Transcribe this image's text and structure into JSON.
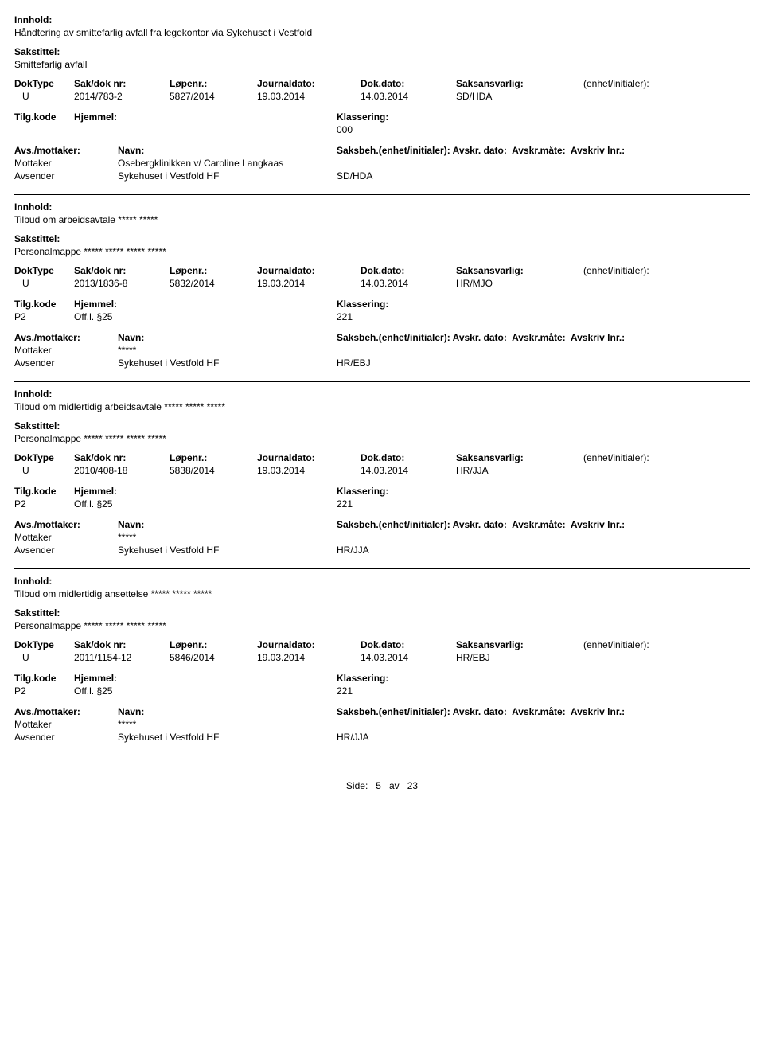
{
  "labels": {
    "innhold": "Innhold:",
    "sakstittel": "Sakstittel:",
    "dokType": "DokType",
    "sakDokNr": "Sak/dok nr:",
    "lopenr": "Løpenr.:",
    "journaldato": "Journaldato:",
    "dokDato": "Dok.dato:",
    "saksansvarlig": "Saksansvarlig:",
    "enhetInit": "(enhet/initialer):",
    "tilgKode": "Tilg.kode",
    "hjemmel": "Hjemmel:",
    "klassering": "Klassering:",
    "avsMottaker": "Avs./mottaker:",
    "navn": "Navn:",
    "saksbeh": "Saksbeh.(enhet/initialer):",
    "avskrDato": "Avskr. dato:",
    "avskrMate": "Avskr.måte:",
    "avskrivLnr": "Avskriv lnr.:",
    "mottaker": "Mottaker",
    "avsender": "Avsender"
  },
  "records": [
    {
      "innhold": "Håndtering av smittefarlig avfall fra legekontor via Sykehuset i Vestfold",
      "sakstittel": "Smittefarlig avfall",
      "dokType": "U",
      "sakDokNr": "2014/783-2",
      "lopenr": "5827/2014",
      "journaldato": "19.03.2014",
      "dokDato": "14.03.2014",
      "saksansvarlig": "SD/HDA",
      "tilgKode": "",
      "hjemmel": "",
      "klassering": "000",
      "mottakerNavn": "Osebergklinikken v/ Caroline Langkaas",
      "avsenderNavn": "Sykehuset i Vestfold HF",
      "saksbeh": "SD/HDA"
    },
    {
      "innhold": "Tilbud om arbeidsavtale ***** *****",
      "sakstittel": "Personalmappe ***** ***** ***** *****",
      "dokType": "U",
      "sakDokNr": "2013/1836-8",
      "lopenr": "5832/2014",
      "journaldato": "19.03.2014",
      "dokDato": "14.03.2014",
      "saksansvarlig": "HR/MJO",
      "tilgKode": "P2",
      "hjemmel": "Off.l. §25",
      "klassering": "221",
      "mottakerNavn": "*****",
      "avsenderNavn": "Sykehuset i Vestfold HF",
      "saksbeh": "HR/EBJ"
    },
    {
      "innhold": "Tilbud om midlertidig arbeidsavtale ***** ***** *****",
      "sakstittel": "Personalmappe ***** ***** ***** *****",
      "dokType": "U",
      "sakDokNr": "2010/408-18",
      "lopenr": "5838/2014",
      "journaldato": "19.03.2014",
      "dokDato": "14.03.2014",
      "saksansvarlig": "HR/JJA",
      "tilgKode": "P2",
      "hjemmel": "Off.l. §25",
      "klassering": "221",
      "mottakerNavn": "*****",
      "avsenderNavn": "Sykehuset i Vestfold HF",
      "saksbeh": "HR/JJA"
    },
    {
      "innhold": "Tilbud om midlertidig ansettelse ***** ***** *****",
      "sakstittel": "Personalmappe ***** ***** ***** *****",
      "dokType": "U",
      "sakDokNr": "2011/1154-12",
      "lopenr": "5846/2014",
      "journaldato": "19.03.2014",
      "dokDato": "14.03.2014",
      "saksansvarlig": "HR/EBJ",
      "tilgKode": "P2",
      "hjemmel": "Off.l. §25",
      "klassering": "221",
      "mottakerNavn": "*****",
      "avsenderNavn": "Sykehuset i Vestfold HF",
      "saksbeh": "HR/JJA"
    }
  ],
  "footer": {
    "prefix": "Side:",
    "page": "5",
    "sep": "av",
    "total": "23"
  }
}
